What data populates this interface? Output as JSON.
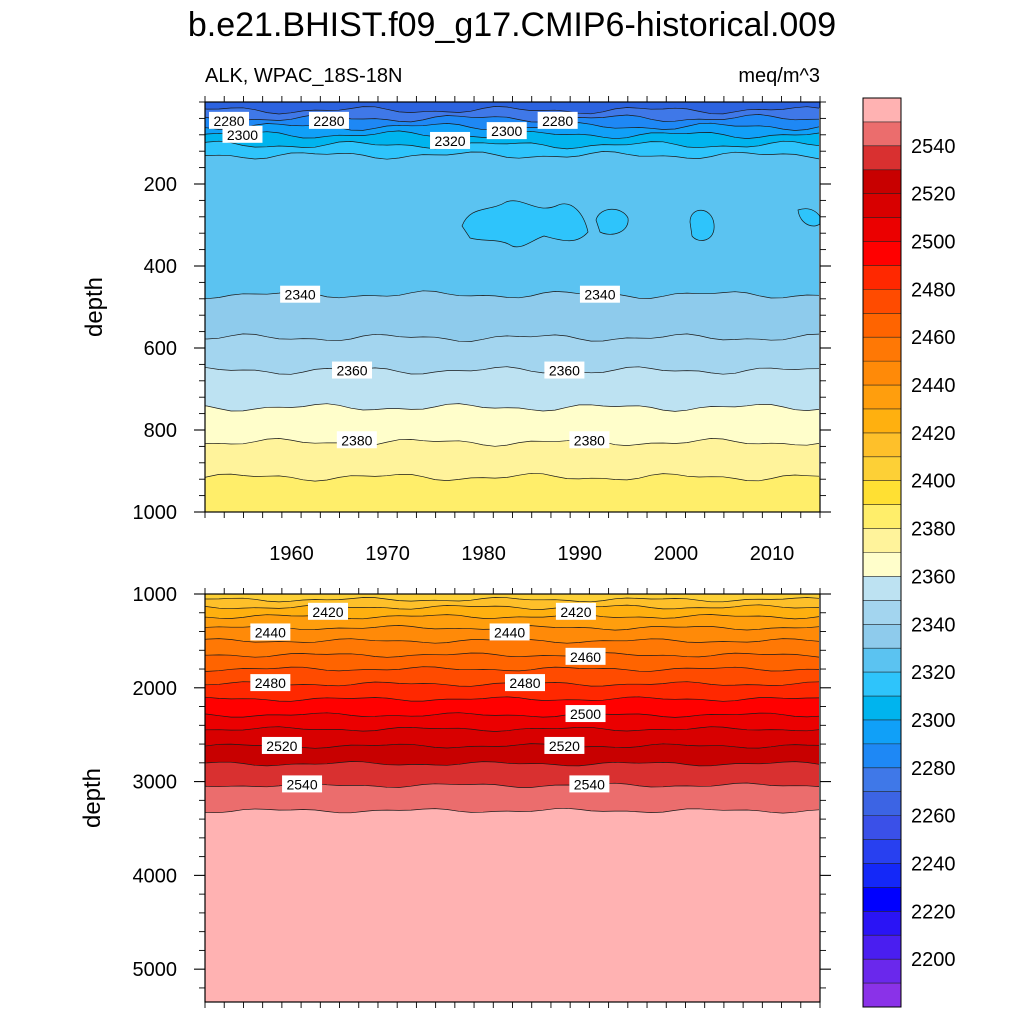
{
  "chart_data": {
    "type": "contour",
    "title": "b.e21.BHIST.f09_g17.CMIP6-historical.009",
    "variable_label": "ALK, WPAC_18S-18N",
    "units_label": "meq/m^3",
    "ylabel": "depth",
    "x_axis": {
      "xlim": [
        1951,
        2015
      ],
      "tick_labels": [
        "1960",
        "1970",
        "1980",
        "1990",
        "2000",
        "2010"
      ],
      "tick_values": [
        1960,
        1970,
        1980,
        1990,
        2000,
        2010
      ]
    },
    "panels": [
      {
        "name": "upper",
        "ylim": [
          0,
          1000
        ],
        "y_tick_labels": [
          "200",
          "400",
          "600",
          "800",
          "1000"
        ],
        "y_tick_values": [
          200,
          400,
          600,
          800,
          1000
        ],
        "contour_labels": [
          {
            "text": "2280",
            "x": 1953.5,
            "y": 46
          },
          {
            "text": "2300",
            "x": 1954.9,
            "y": 80
          },
          {
            "text": "2280",
            "x": 1963.9,
            "y": 46
          },
          {
            "text": "2320",
            "x": 1976.5,
            "y": 95
          },
          {
            "text": "2300",
            "x": 1982.4,
            "y": 71
          },
          {
            "text": "2280",
            "x": 1987.7,
            "y": 46
          },
          {
            "text": "2340",
            "x": 1960.9,
            "y": 470
          },
          {
            "text": "2340",
            "x": 1992.1,
            "y": 470
          },
          {
            "text": "2360",
            "x": 1966.3,
            "y": 655
          },
          {
            "text": "2360",
            "x": 1988.4,
            "y": 655
          },
          {
            "text": "2380",
            "x": 1966.8,
            "y": 825
          },
          {
            "text": "2380",
            "x": 1991.0,
            "y": 825
          }
        ]
      },
      {
        "name": "lower",
        "ylim": [
          1000,
          5350
        ],
        "y_tick_labels": [
          "1000",
          "2000",
          "3000",
          "4000",
          "5000"
        ],
        "y_tick_values": [
          1000,
          2000,
          3000,
          4000,
          5000
        ],
        "contour_labels": [
          {
            "text": "2420",
            "x": 1963.8,
            "y": 1190
          },
          {
            "text": "2420",
            "x": 1989.6,
            "y": 1190
          },
          {
            "text": "2440",
            "x": 1957.8,
            "y": 1410
          },
          {
            "text": "2440",
            "x": 1982.7,
            "y": 1410
          },
          {
            "text": "2460",
            "x": 1990.6,
            "y": 1670
          },
          {
            "text": "2480",
            "x": 1957.8,
            "y": 1950
          },
          {
            "text": "2480",
            "x": 1984.3,
            "y": 1950
          },
          {
            "text": "2500",
            "x": 1990.6,
            "y": 2280
          },
          {
            "text": "2520",
            "x": 1959.0,
            "y": 2620
          },
          {
            "text": "2520",
            "x": 1988.4,
            "y": 2620
          },
          {
            "text": "2540",
            "x": 1961.1,
            "y": 3030
          },
          {
            "text": "2540",
            "x": 1991.0,
            "y": 3030
          }
        ]
      }
    ],
    "upper_bands": [
      {
        "level_top": 0,
        "level_bottom": 20,
        "color": "#2c63e0"
      },
      {
        "level_top": 20,
        "level_bottom": 40,
        "color": "#3f78e8"
      },
      {
        "level_top": 40,
        "level_bottom": 60,
        "color": "#1e88f5"
      },
      {
        "level_top": 60,
        "level_bottom": 80,
        "color": "#10a0f8"
      },
      {
        "level_top": 80,
        "level_bottom": 105,
        "color": "#00b4ee"
      },
      {
        "level_top": 105,
        "level_bottom": 130,
        "color": "#2ec4fb"
      },
      {
        "level_top": 130,
        "level_bottom": 470,
        "color": "#5bc3f1"
      },
      {
        "level_top": 470,
        "level_bottom": 575,
        "color": "#8ecbec"
      },
      {
        "level_top": 575,
        "level_bottom": 655,
        "color": "#a3d5ef"
      },
      {
        "level_top": 655,
        "level_bottom": 745,
        "color": "#bde2f2"
      },
      {
        "level_top": 745,
        "level_bottom": 830,
        "color": "#fffecb"
      },
      {
        "level_top": 830,
        "level_bottom": 915,
        "color": "#fff39b"
      },
      {
        "level_top": 915,
        "level_bottom": 1000,
        "color": "#ffee6a"
      }
    ],
    "lower_bands": [
      {
        "level_top": 1000,
        "level_bottom": 1060,
        "color": "#fdd036"
      },
      {
        "level_top": 1060,
        "level_bottom": 1140,
        "color": "#fec02a"
      },
      {
        "level_top": 1140,
        "level_bottom": 1240,
        "color": "#ffb00f"
      },
      {
        "level_top": 1240,
        "level_bottom": 1360,
        "color": "#ff9e0d"
      },
      {
        "level_top": 1360,
        "level_bottom": 1500,
        "color": "#ff8a08"
      },
      {
        "level_top": 1500,
        "level_bottom": 1650,
        "color": "#ff7805"
      },
      {
        "level_top": 1650,
        "level_bottom": 1800,
        "color": "#ff6400"
      },
      {
        "level_top": 1800,
        "level_bottom": 1960,
        "color": "#ff4b00"
      },
      {
        "level_top": 1960,
        "level_bottom": 2120,
        "color": "#ff2800"
      },
      {
        "level_top": 2120,
        "level_bottom": 2290,
        "color": "#ff0000"
      },
      {
        "level_top": 2290,
        "level_bottom": 2440,
        "color": "#eb0000"
      },
      {
        "level_top": 2440,
        "level_bottom": 2620,
        "color": "#d80000"
      },
      {
        "level_top": 2620,
        "level_bottom": 2810,
        "color": "#c80000"
      },
      {
        "level_top": 2810,
        "level_bottom": 3040,
        "color": "#d93030"
      },
      {
        "level_top": 3040,
        "level_bottom": 3310,
        "color": "#eb6d6d"
      },
      {
        "level_top": 3310,
        "level_bottom": 5350,
        "color": "#ffb2b2"
      }
    ],
    "colorbar": {
      "tick_labels": [
        "2540",
        "2520",
        "2500",
        "2480",
        "2460",
        "2440",
        "2420",
        "2400",
        "2380",
        "2360",
        "2340",
        "2320",
        "2300",
        "2280",
        "2260",
        "2240",
        "2220",
        "2200"
      ],
      "colors_top_to_bottom": [
        "#ffb2b2",
        "#eb6d6d",
        "#d93030",
        "#c80000",
        "#d80000",
        "#eb0000",
        "#ff0000",
        "#ff2800",
        "#ff4b00",
        "#ff6400",
        "#ff7805",
        "#ff8a08",
        "#ff9e0d",
        "#ffb00f",
        "#fec02a",
        "#fdd036",
        "#ffe033",
        "#ffee6a",
        "#fff39b",
        "#fffecb",
        "#bde2f2",
        "#a3d5ef",
        "#8ecbec",
        "#5bc3f1",
        "#2ec4fb",
        "#00b4ee",
        "#10a0f8",
        "#1e88f5",
        "#3f78e8",
        "#3c64e4",
        "#3a50e8",
        "#2840f0",
        "#1428f8",
        "#0000ff",
        "#2a14f5",
        "#4a1ef0",
        "#6a28ec",
        "#8a32e8"
      ]
    }
  }
}
